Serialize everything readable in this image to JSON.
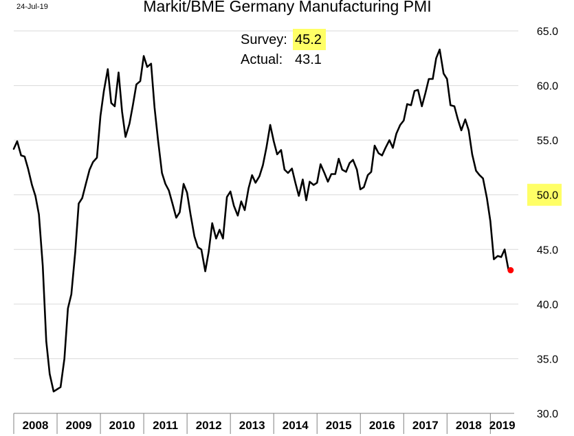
{
  "date_stamp": "24-Jul-19",
  "chart_data": {
    "type": "line",
    "title": "Markit/BME Germany Manufacturing PMI",
    "xlabel": "",
    "ylabel": "",
    "ylim": [
      30.0,
      65.0
    ],
    "y_ticks": [
      "30.0",
      "35.0",
      "40.0",
      "45.0",
      "50.0",
      "55.0",
      "60.0",
      "65.0"
    ],
    "y_tick_values": [
      30,
      35,
      40,
      45,
      50,
      55,
      60,
      65
    ],
    "highlighted_tick": "50.0",
    "highlight_color": "#ffff66",
    "x_range": [
      2008.0,
      2019.55
    ],
    "year_labels": [
      "2008",
      "2009",
      "2010",
      "2011",
      "2012",
      "2013",
      "2014",
      "2015",
      "2016",
      "2017",
      "2018",
      "2019"
    ],
    "grid": "horizontal",
    "line_color": "#000000",
    "series": [
      {
        "points": [
          [
            2008.0,
            54.2
          ],
          [
            2008.08,
            54.9
          ],
          [
            2008.17,
            53.6
          ],
          [
            2008.25,
            53.5
          ],
          [
            2008.33,
            52.4
          ],
          [
            2008.42,
            50.9
          ],
          [
            2008.5,
            49.9
          ],
          [
            2008.58,
            48.2
          ],
          [
            2008.67,
            43.5
          ],
          [
            2008.75,
            36.6
          ],
          [
            2008.83,
            33.6
          ],
          [
            2008.92,
            32.0
          ],
          [
            2009.0,
            32.2
          ],
          [
            2009.08,
            32.4
          ],
          [
            2009.17,
            35.0
          ],
          [
            2009.25,
            39.6
          ],
          [
            2009.33,
            40.9
          ],
          [
            2009.42,
            44.8
          ],
          [
            2009.5,
            49.2
          ],
          [
            2009.58,
            49.7
          ],
          [
            2009.67,
            51.1
          ],
          [
            2009.75,
            52.3
          ],
          [
            2009.83,
            53.0
          ],
          [
            2009.92,
            53.4
          ],
          [
            2010.0,
            57.2
          ],
          [
            2010.08,
            59.5
          ],
          [
            2010.17,
            61.5
          ],
          [
            2010.25,
            58.4
          ],
          [
            2010.33,
            58.1
          ],
          [
            2010.42,
            61.2
          ],
          [
            2010.5,
            57.6
          ],
          [
            2010.58,
            55.3
          ],
          [
            2010.67,
            56.5
          ],
          [
            2010.75,
            58.2
          ],
          [
            2010.83,
            60.1
          ],
          [
            2010.92,
            60.4
          ],
          [
            2011.0,
            62.7
          ],
          [
            2011.08,
            61.7
          ],
          [
            2011.17,
            62.0
          ],
          [
            2011.25,
            58.0
          ],
          [
            2011.33,
            55.0
          ],
          [
            2011.42,
            52.0
          ],
          [
            2011.5,
            51.0
          ],
          [
            2011.58,
            50.4
          ],
          [
            2011.67,
            49.1
          ],
          [
            2011.75,
            47.9
          ],
          [
            2011.83,
            48.4
          ],
          [
            2011.92,
            51.0
          ],
          [
            2012.0,
            50.2
          ],
          [
            2012.08,
            48.2
          ],
          [
            2012.17,
            46.2
          ],
          [
            2012.25,
            45.2
          ],
          [
            2012.33,
            45.0
          ],
          [
            2012.42,
            43.0
          ],
          [
            2012.5,
            44.8
          ],
          [
            2012.58,
            47.4
          ],
          [
            2012.67,
            46.0
          ],
          [
            2012.75,
            46.8
          ],
          [
            2012.83,
            46.0
          ],
          [
            2012.92,
            49.8
          ],
          [
            2013.0,
            50.3
          ],
          [
            2013.08,
            49.0
          ],
          [
            2013.17,
            48.1
          ],
          [
            2013.25,
            49.4
          ],
          [
            2013.33,
            48.6
          ],
          [
            2013.42,
            50.6
          ],
          [
            2013.5,
            51.8
          ],
          [
            2013.58,
            51.1
          ],
          [
            2013.67,
            51.7
          ],
          [
            2013.75,
            52.7
          ],
          [
            2013.83,
            54.3
          ],
          [
            2013.92,
            56.4
          ],
          [
            2014.0,
            54.9
          ],
          [
            2014.08,
            53.7
          ],
          [
            2014.17,
            54.1
          ],
          [
            2014.25,
            52.3
          ],
          [
            2014.33,
            52.0
          ],
          [
            2014.42,
            52.4
          ],
          [
            2014.5,
            51.1
          ],
          [
            2014.58,
            49.9
          ],
          [
            2014.67,
            51.4
          ],
          [
            2014.75,
            49.5
          ],
          [
            2014.83,
            51.2
          ],
          [
            2014.92,
            50.9
          ],
          [
            2015.0,
            51.1
          ],
          [
            2015.08,
            52.8
          ],
          [
            2015.17,
            52.0
          ],
          [
            2015.25,
            51.2
          ],
          [
            2015.33,
            51.9
          ],
          [
            2015.42,
            51.9
          ],
          [
            2015.5,
            53.3
          ],
          [
            2015.58,
            52.3
          ],
          [
            2015.67,
            52.1
          ],
          [
            2015.75,
            52.9
          ],
          [
            2015.83,
            53.2
          ],
          [
            2015.92,
            52.3
          ],
          [
            2016.0,
            50.5
          ],
          [
            2016.08,
            50.7
          ],
          [
            2016.17,
            51.8
          ],
          [
            2016.25,
            52.1
          ],
          [
            2016.33,
            54.5
          ],
          [
            2016.42,
            53.8
          ],
          [
            2016.5,
            53.6
          ],
          [
            2016.58,
            54.3
          ],
          [
            2016.67,
            55.0
          ],
          [
            2016.75,
            54.3
          ],
          [
            2016.83,
            55.6
          ],
          [
            2016.92,
            56.4
          ],
          [
            2017.0,
            56.8
          ],
          [
            2017.08,
            58.3
          ],
          [
            2017.17,
            58.2
          ],
          [
            2017.25,
            59.5
          ],
          [
            2017.33,
            59.6
          ],
          [
            2017.42,
            58.1
          ],
          [
            2017.5,
            59.3
          ],
          [
            2017.58,
            60.6
          ],
          [
            2017.67,
            60.6
          ],
          [
            2017.75,
            62.5
          ],
          [
            2017.83,
            63.3
          ],
          [
            2017.92,
            61.1
          ],
          [
            2018.0,
            60.6
          ],
          [
            2018.08,
            58.2
          ],
          [
            2018.17,
            58.1
          ],
          [
            2018.25,
            56.9
          ],
          [
            2018.33,
            55.9
          ],
          [
            2018.42,
            56.9
          ],
          [
            2018.5,
            55.9
          ],
          [
            2018.58,
            53.7
          ],
          [
            2018.67,
            52.2
          ],
          [
            2018.75,
            51.8
          ],
          [
            2018.83,
            51.5
          ],
          [
            2018.92,
            49.7
          ],
          [
            2019.0,
            47.6
          ],
          [
            2019.08,
            44.1
          ],
          [
            2019.17,
            44.4
          ],
          [
            2019.25,
            44.3
          ],
          [
            2019.33,
            45.0
          ],
          [
            2019.42,
            43.1
          ]
        ]
      }
    ],
    "last_point": {
      "x": 2019.42,
      "y": 43.1,
      "color": "#ff0000"
    },
    "annotations": {
      "survey_label": "Survey:",
      "survey_value": "45.2",
      "actual_label": "Actual:",
      "actual_value": "43.1"
    }
  }
}
